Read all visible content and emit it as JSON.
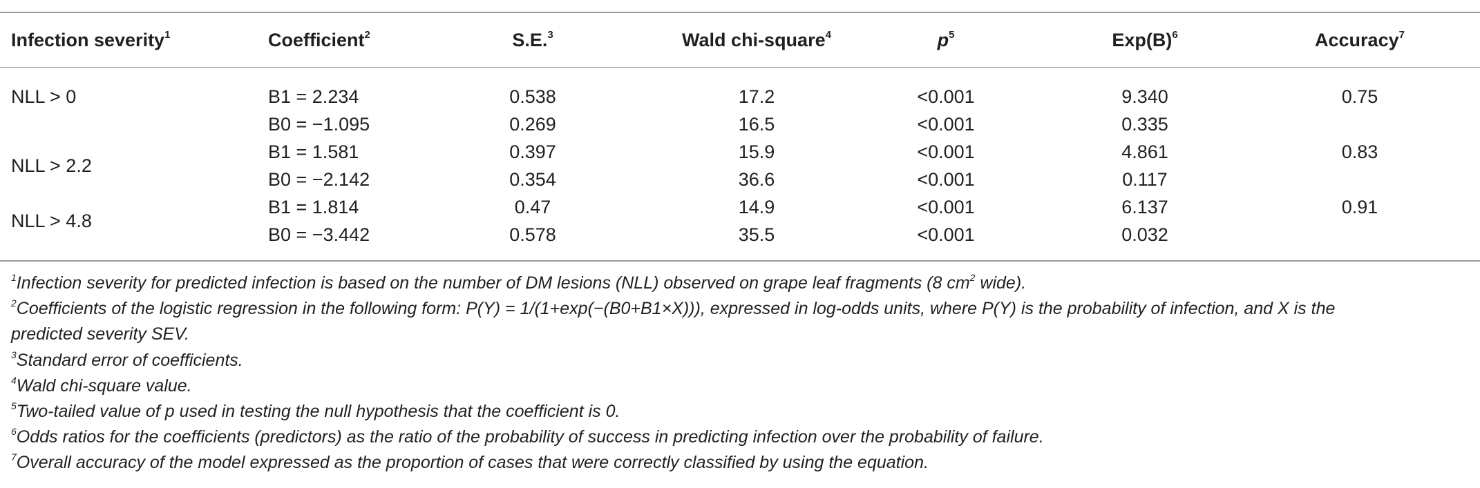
{
  "table": {
    "headers": [
      {
        "label": "Infection severity",
        "note": "1"
      },
      {
        "label": "Coefficient",
        "note": "2"
      },
      {
        "label": "S.E.",
        "note": "3"
      },
      {
        "label": "Wald chi-square",
        "note": "4"
      },
      {
        "label": "p",
        "note": "5"
      },
      {
        "label": "Exp(B)",
        "note": "6"
      },
      {
        "label": "Accuracy",
        "note": "7"
      }
    ],
    "groups": [
      {
        "severity": "NLL > 0",
        "accuracy": "0.75",
        "rows": [
          {
            "coefficient": "B1 = 2.234",
            "se": "0.538",
            "wald": "17.2",
            "p": "<0.001",
            "expb": "9.340"
          },
          {
            "coefficient": "B0 = −1.095",
            "se": "0.269",
            "wald": "16.5",
            "p": "<0.001",
            "expb": "0.335"
          }
        ]
      },
      {
        "severity": "NLL > 2.2",
        "accuracy": "0.83",
        "rows": [
          {
            "coefficient": "B1 = 1.581",
            "se": "0.397",
            "wald": "15.9",
            "p": "<0.001",
            "expb": "4.861"
          },
          {
            "coefficient": "B0 = −2.142",
            "se": "0.354",
            "wald": "36.6",
            "p": "<0.001",
            "expb": "0.117"
          }
        ]
      },
      {
        "severity": "NLL > 4.8",
        "accuracy": "0.91",
        "rows": [
          {
            "coefficient": "B1 = 1.814",
            "se": "0.47",
            "wald": "14.9",
            "p": "<0.001",
            "expb": "6.137"
          },
          {
            "coefficient": "B0 = −3.442",
            "se": "0.578",
            "wald": "35.5",
            "p": "<0.001",
            "expb": "0.032"
          }
        ]
      }
    ]
  },
  "footnotes": [
    {
      "mark": "1",
      "pre": "Infection severity for predicted infection is based on the number of DM lesions (NLL) observed on grape leaf fragments (8 cm",
      "sup": "2",
      "post": " wide)."
    },
    {
      "mark": "2",
      "text": "Coefficients of the logistic regression in the following form: P(Y) = 1/(1+exp(−(B0+B1×X))), expressed in log-odds units, where P(Y) is the probability of infection, and X is the",
      "cont": "predicted severity SEV."
    },
    {
      "mark": "3",
      "text": "Standard error of coefficients."
    },
    {
      "mark": "4",
      "text": "Wald chi-square value."
    },
    {
      "mark": "5",
      "text": "Two-tailed value of p used in testing the null hypothesis that the coefficient is 0."
    },
    {
      "mark": "6",
      "text": "Odds ratios for the coefficients (predictors) as the ratio of the probability of success in predicting infection over the probability of failure."
    },
    {
      "mark": "7",
      "text": "Overall accuracy of the model expressed as the proportion of cases that were correctly classified by using the equation."
    }
  ]
}
